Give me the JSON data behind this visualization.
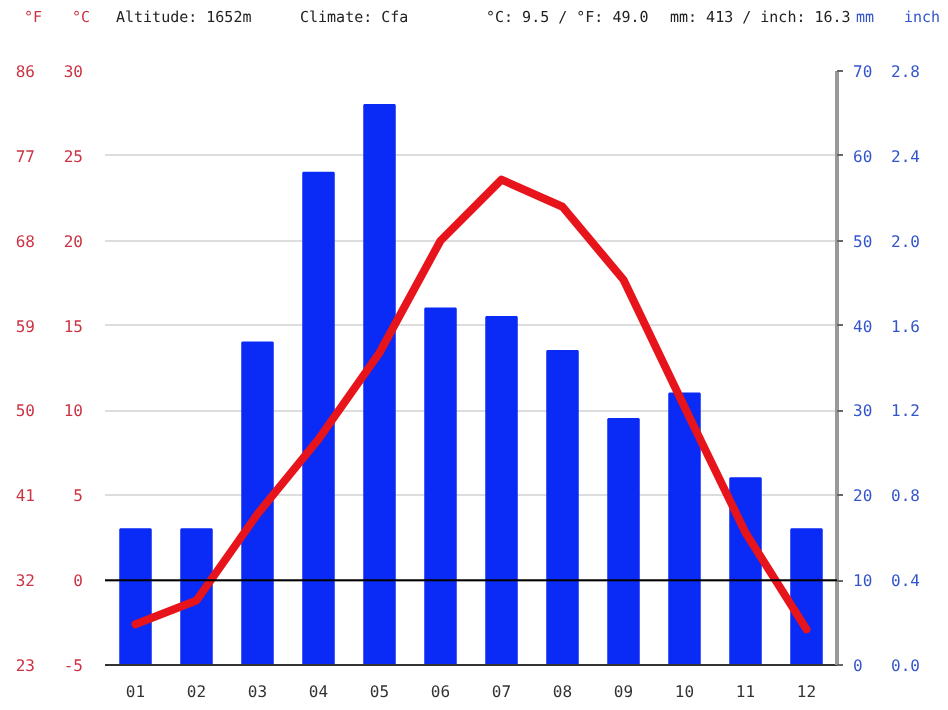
{
  "chart_data": {
    "type": "bar",
    "categories": [
      "01",
      "02",
      "03",
      "04",
      "05",
      "06",
      "07",
      "08",
      "09",
      "10",
      "11",
      "12"
    ],
    "series": [
      {
        "axis": "y2",
        "color": "#0a2af5",
        "values": [
          16,
          16,
          38,
          58,
          66,
          42,
          41,
          37,
          29,
          32,
          22,
          16
        ]
      },
      {
        "type": "line",
        "color": "#e8141b",
        "values": [
          -2.6,
          -1.2,
          3.9,
          8.3,
          13.4,
          20.0,
          23.6,
          22.0,
          17.7,
          10.2,
          2.8,
          -2.9
        ]
      }
    ],
    "ylabel": "°C",
    "y2label": "mm",
    "y3label": "°F",
    "ylim": [
      -5,
      30
    ],
    "yticks": [
      -5,
      0,
      5,
      10,
      15,
      20,
      25,
      30
    ],
    "y2lim": [
      0,
      70
    ],
    "y2ticks": [
      0,
      10,
      20,
      30,
      40,
      50,
      60,
      70
    ],
    "y3lim": [
      23,
      86
    ],
    "y3ticks": [
      23,
      32,
      41,
      50,
      59,
      68,
      77,
      86
    ],
    "ref_lines": [
      {
        "axis": "y",
        "value": 0,
        "color": "#000000"
      }
    ],
    "annotations": [
      "Altitude: 1652m",
      "Climate: Cfa",
      "°C: 9.5 / °F: 49.0",
      "mm: 413 / inch: 16.3",
      "inch",
      "0.0",
      "0.4",
      "0.8",
      "1.2",
      "1.6",
      "2.0",
      "2.4",
      "2.8"
    ],
    "grid": "y",
    "line_style": "solid",
    "marker": "none"
  }
}
